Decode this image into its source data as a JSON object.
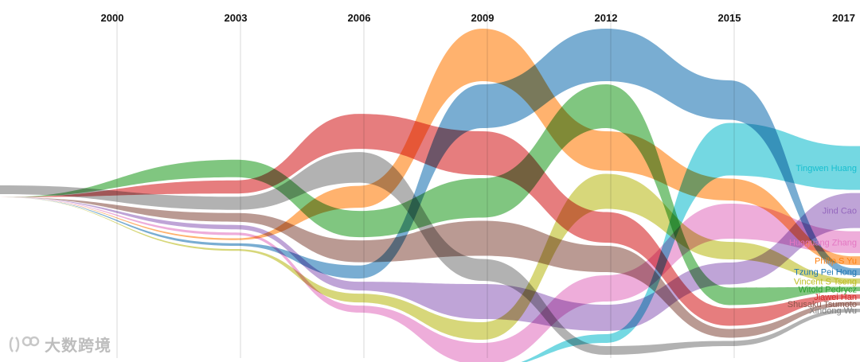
{
  "chart_data": {
    "type": "area",
    "x": [
      "2000",
      "2003",
      "2006",
      "2009",
      "2012",
      "2015",
      "2017"
    ],
    "series": [
      {
        "name": "Tingwen Huang",
        "color": "#17becf",
        "values": [
          0,
          0,
          0,
          0,
          1,
          6,
          5
        ]
      },
      {
        "name": "Jind Cao",
        "color": "#9467bd",
        "values": [
          0,
          0.5,
          1,
          4,
          3,
          2.5,
          4
        ]
      },
      {
        "name": "Huaguang Zhang",
        "color": "#e377c2",
        "values": [
          0,
          0.3,
          0.8,
          2.5,
          3,
          4,
          2.5
        ]
      },
      {
        "name": "Philip S Yu",
        "color": "#ff7f0e",
        "values": [
          0,
          0.2,
          2.5,
          6,
          4.5,
          2.5,
          1
        ]
      },
      {
        "name": "Tzung Pei Hong",
        "color": "#1f77b4",
        "values": [
          0,
          0.3,
          1.5,
          5,
          6,
          4.5,
          0.8
        ]
      },
      {
        "name": "Vincent S Tseng",
        "color": "#bcbd22",
        "values": [
          0,
          0.2,
          1,
          2,
          4,
          2,
          0.6
        ]
      },
      {
        "name": "Witold Pedrycz",
        "color": "#2ca02c",
        "values": [
          0,
          2,
          3,
          4.5,
          5,
          2,
          0.5
        ]
      },
      {
        "name": "Jiawei Han",
        "color": "#d62728",
        "values": [
          0,
          1.5,
          4,
          5,
          3.5,
          2,
          0.5
        ]
      },
      {
        "name": "Shusaku Tsumoto",
        "color": "#8c564b",
        "values": [
          0,
          1,
          2.5,
          4,
          3,
          1,
          0.4
        ]
      },
      {
        "name": "Xindong Wu",
        "color": "#7f7f7f",
        "values": [
          1,
          1.5,
          3.5,
          2.5,
          1,
          0.6,
          0.4
        ]
      }
    ]
  },
  "watermark": {
    "text": "大数跨境"
  }
}
